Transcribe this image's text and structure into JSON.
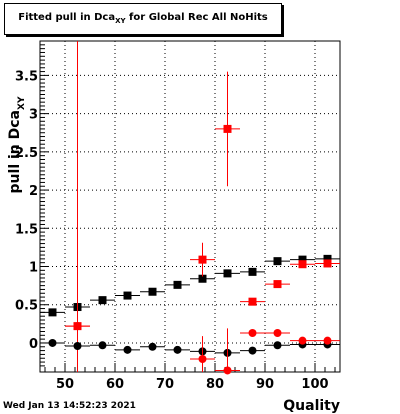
{
  "title": {
    "prefix": "Fitted pull in Dca",
    "subscript": "XY",
    "suffix": " for Global Rec All NoHits"
  },
  "datestamp": "Wed Jan 13 14:52:23 2021",
  "chart_data": {
    "type": "scatter",
    "xlabel": "Quality",
    "ylabel": "pull in Dca",
    "ylabel_subscript": "XY",
    "xlim": [
      45,
      105
    ],
    "ylim": [
      -0.38,
      3.95
    ],
    "x_ticks": [
      50,
      60,
      70,
      80,
      90,
      100
    ],
    "x_tick_labels": [
      "50",
      "60",
      "70",
      "80",
      "90",
      "100"
    ],
    "y_ticks": [
      0,
      0.5,
      1,
      1.5,
      2,
      2.5,
      3,
      3.5
    ],
    "y_tick_labels": [
      "0",
      "0.5",
      "1",
      "1.5",
      "2",
      "2.5",
      "3",
      "3.5"
    ],
    "grid": true,
    "x_bin_half_width": 2.5,
    "series": [
      {
        "color": "#000000",
        "marker": "square",
        "points": [
          {
            "x": 47.5,
            "y": 0.4,
            "err": 0.0
          },
          {
            "x": 52.5,
            "y": 0.47,
            "err": 0.0
          },
          {
            "x": 57.5,
            "y": 0.56,
            "err": 0.0
          },
          {
            "x": 62.5,
            "y": 0.62,
            "err": 0.0
          },
          {
            "x": 67.5,
            "y": 0.67,
            "err": 0.0
          },
          {
            "x": 72.5,
            "y": 0.76,
            "err": 0.0
          },
          {
            "x": 77.5,
            "y": 0.84,
            "err": 0.0
          },
          {
            "x": 82.5,
            "y": 0.91,
            "err": 0.0
          },
          {
            "x": 87.5,
            "y": 0.93,
            "err": 0.0
          },
          {
            "x": 92.5,
            "y": 1.07,
            "err": 0.0
          },
          {
            "x": 97.5,
            "y": 1.09,
            "err": 0.0
          },
          {
            "x": 102.5,
            "y": 1.1,
            "err": 0.0
          }
        ]
      },
      {
        "color": "#ff0000",
        "marker": "square",
        "points": [
          {
            "x": 52.5,
            "y": 0.22,
            "err": 4.5
          },
          {
            "x": 77.5,
            "y": 1.09,
            "err": 0.22
          },
          {
            "x": 82.5,
            "y": 2.8,
            "err": 0.75
          },
          {
            "x": 87.5,
            "y": 0.54,
            "err": 0.0
          },
          {
            "x": 92.5,
            "y": 0.77,
            "err": 0.0
          },
          {
            "x": 97.5,
            "y": 1.03,
            "err": 0.0
          },
          {
            "x": 102.5,
            "y": 1.04,
            "err": 0.0
          }
        ]
      },
      {
        "color": "#000000",
        "marker": "circle",
        "points": [
          {
            "x": 47.5,
            "y": 0.0,
            "err": 0.0
          },
          {
            "x": 52.5,
            "y": -0.04,
            "err": 0.0
          },
          {
            "x": 57.5,
            "y": -0.03,
            "err": 0.0
          },
          {
            "x": 62.5,
            "y": -0.09,
            "err": 0.0
          },
          {
            "x": 67.5,
            "y": -0.05,
            "err": 0.0
          },
          {
            "x": 72.5,
            "y": -0.09,
            "err": 0.0
          },
          {
            "x": 77.5,
            "y": -0.11,
            "err": 0.0
          },
          {
            "x": 82.5,
            "y": -0.13,
            "err": 0.0
          },
          {
            "x": 87.5,
            "y": -0.1,
            "err": 0.0
          },
          {
            "x": 92.5,
            "y": -0.03,
            "err": 0.0
          },
          {
            "x": 97.5,
            "y": -0.02,
            "err": 0.0
          },
          {
            "x": 102.5,
            "y": -0.02,
            "err": 0.0
          }
        ]
      },
      {
        "color": "#ff0000",
        "marker": "circle",
        "points": [
          {
            "x": 52.5,
            "y": 0.22,
            "err": 0.0
          },
          {
            "x": 77.5,
            "y": -0.21,
            "err": 0.3
          },
          {
            "x": 82.5,
            "y": -0.36,
            "err": 0.55
          },
          {
            "x": 87.5,
            "y": 0.13,
            "err": 0.0
          },
          {
            "x": 92.5,
            "y": 0.13,
            "err": 0.0
          },
          {
            "x": 97.5,
            "y": 0.03,
            "err": 0.0
          },
          {
            "x": 102.5,
            "y": 0.03,
            "err": 0.0
          }
        ]
      }
    ]
  }
}
